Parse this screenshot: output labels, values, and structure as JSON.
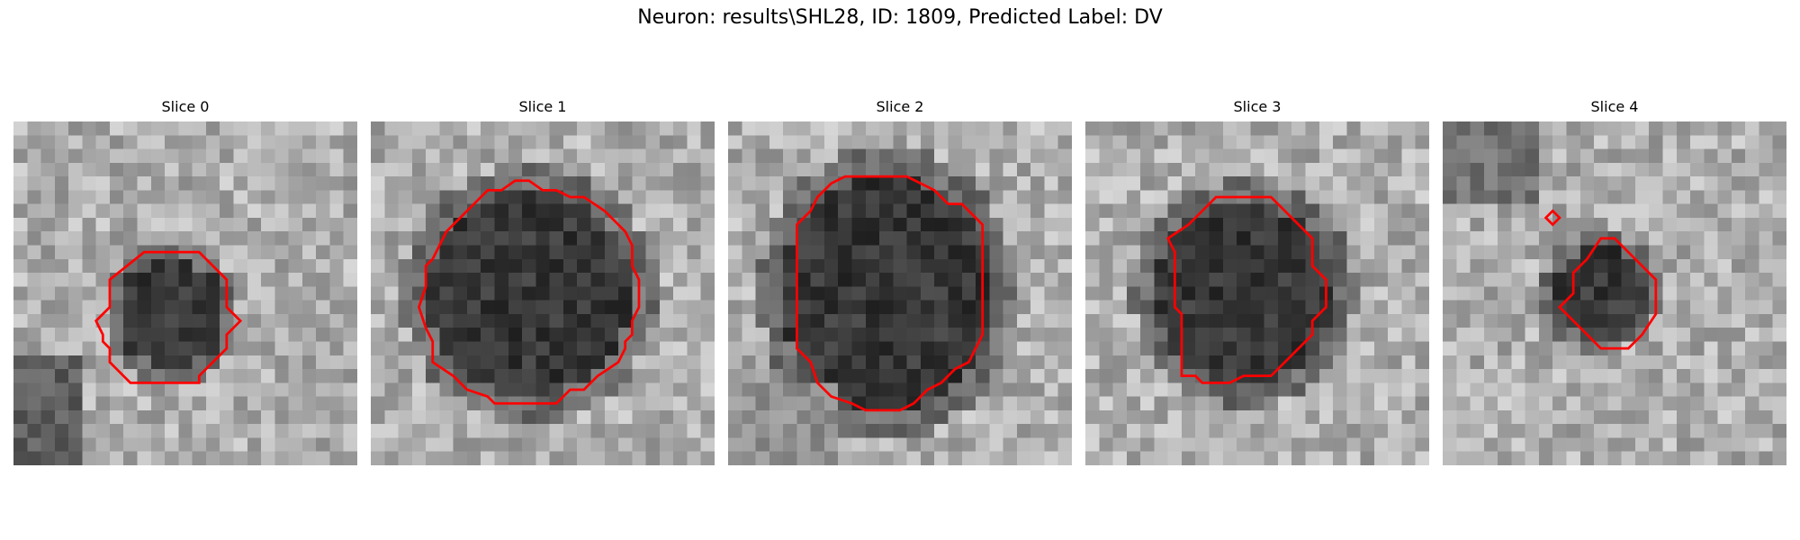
{
  "figure": {
    "title": "Neuron: results\\SHL28, ID: 1809, Predicted Label: DV",
    "contour_color": "#ff0000"
  },
  "panels": [
    {
      "title": "Slice 0",
      "contours": [
        [
          [
            9.5,
            9.5
          ],
          [
            13.5,
            9.5
          ],
          [
            15.5,
            11.5
          ],
          [
            15.5,
            13.5
          ],
          [
            16.5,
            14.5
          ],
          [
            15.5,
            15.5
          ],
          [
            15.5,
            16.5
          ],
          [
            14.5,
            17.5
          ],
          [
            13.5,
            18.5
          ],
          [
            13.5,
            19.0
          ],
          [
            8.5,
            19.0
          ],
          [
            7.5,
            18.0
          ],
          [
            7.0,
            17.5
          ],
          [
            7.0,
            16.5
          ],
          [
            6.5,
            16.0
          ],
          [
            6.5,
            15.5
          ],
          [
            6.0,
            14.5
          ],
          [
            7.0,
            13.5
          ],
          [
            7.0,
            11.5
          ]
        ]
      ],
      "lesion": {
        "cx": 11.5,
        "cy": 14.0,
        "rx": 4.0,
        "ry": 4.0
      }
    },
    {
      "title": "Slice 1",
      "contours": [
        [
          [
            9.5,
            5.0
          ],
          [
            10.5,
            4.3
          ],
          [
            11.5,
            4.3
          ],
          [
            12.5,
            5.0
          ],
          [
            13.5,
            5.0
          ],
          [
            14.5,
            5.5
          ],
          [
            15.5,
            5.5
          ],
          [
            17.0,
            6.5
          ],
          [
            17.5,
            7.0
          ],
          [
            18.5,
            8.0
          ],
          [
            19.0,
            9.0
          ],
          [
            19.0,
            10.5
          ],
          [
            19.5,
            11.5
          ],
          [
            19.5,
            13.5
          ],
          [
            19.0,
            14.5
          ],
          [
            19.0,
            15.5
          ],
          [
            18.5,
            16.0
          ],
          [
            18.5,
            16.5
          ],
          [
            18.0,
            17.5
          ],
          [
            16.5,
            18.5
          ],
          [
            15.5,
            19.5
          ],
          [
            14.5,
            19.5
          ],
          [
            13.5,
            20.5
          ],
          [
            9.0,
            20.5
          ],
          [
            8.5,
            20.0
          ],
          [
            7.0,
            19.5
          ],
          [
            6.0,
            18.5
          ],
          [
            4.5,
            17.5
          ],
          [
            4.5,
            16.0
          ],
          [
            4.0,
            15.0
          ],
          [
            3.5,
            13.5
          ],
          [
            4.0,
            12.0
          ],
          [
            4.0,
            10.5
          ],
          [
            4.5,
            10.0
          ],
          [
            5.5,
            8.0
          ],
          [
            7.0,
            6.5
          ],
          [
            8.5,
            5.0
          ]
        ]
      ],
      "lesion": {
        "cx": 11.5,
        "cy": 12.5,
        "rx": 7.5,
        "ry": 7.5
      }
    },
    {
      "title": "Slice 2",
      "contours": [
        [
          [
            8.5,
            4.0
          ],
          [
            13.0,
            4.0
          ],
          [
            14.0,
            4.5
          ],
          [
            15.0,
            5.0
          ],
          [
            16.0,
            6.0
          ],
          [
            17.0,
            6.0
          ],
          [
            17.5,
            6.5
          ],
          [
            18.5,
            7.5
          ],
          [
            18.5,
            15.5
          ],
          [
            17.5,
            17.5
          ],
          [
            16.5,
            18.0
          ],
          [
            15.5,
            19.0
          ],
          [
            14.5,
            19.5
          ],
          [
            13.5,
            20.5
          ],
          [
            12.5,
            21.0
          ],
          [
            10.0,
            21.0
          ],
          [
            9.0,
            20.5
          ],
          [
            7.5,
            20.0
          ],
          [
            6.5,
            19.0
          ],
          [
            6.0,
            17.5
          ],
          [
            5.0,
            16.5
          ],
          [
            5.0,
            7.5
          ],
          [
            6.0,
            6.5
          ],
          [
            6.5,
            5.5
          ],
          [
            7.5,
            4.5
          ]
        ]
      ],
      "lesion": {
        "cx": 11.5,
        "cy": 12.5,
        "rx": 7.5,
        "ry": 8.5
      }
    },
    {
      "title": "Slice 3",
      "contours": [
        [
          [
            9.5,
            5.5
          ],
          [
            13.5,
            5.5
          ],
          [
            16.5,
            8.5
          ],
          [
            16.5,
            10.5
          ],
          [
            17.5,
            11.5
          ],
          [
            17.5,
            13.5
          ],
          [
            16.5,
            14.5
          ],
          [
            16.5,
            15.5
          ],
          [
            15.5,
            16.5
          ],
          [
            14.0,
            18.0
          ],
          [
            13.5,
            18.5
          ],
          [
            11.5,
            18.5
          ],
          [
            10.5,
            19.0
          ],
          [
            8.5,
            19.0
          ],
          [
            8.0,
            18.5
          ],
          [
            7.0,
            18.5
          ],
          [
            7.0,
            14.0
          ],
          [
            6.5,
            13.5
          ],
          [
            6.5,
            9.5
          ],
          [
            6.0,
            8.5
          ],
          [
            7.5,
            7.5
          ],
          [
            8.5,
            6.5
          ]
        ]
      ],
      "lesion": {
        "cx": 11.5,
        "cy": 12.5,
        "rx": 6.5,
        "ry": 6.5
      }
    },
    {
      "title": "Slice 4",
      "contours": [
        [
          [
            11.5,
            8.5
          ],
          [
            12.5,
            8.5
          ],
          [
            13.5,
            9.5
          ],
          [
            15.5,
            11.5
          ],
          [
            15.5,
            14.0
          ],
          [
            14.5,
            15.5
          ],
          [
            13.5,
            16.5
          ],
          [
            11.5,
            16.5
          ],
          [
            10.5,
            15.5
          ],
          [
            9.5,
            14.5
          ],
          [
            8.5,
            13.5
          ],
          [
            9.5,
            12.5
          ],
          [
            9.5,
            11.0
          ],
          [
            10.5,
            10.0
          ]
        ],
        [
          [
            8.0,
            6.5
          ],
          [
            8.5,
            7.0
          ],
          [
            8.0,
            7.5
          ],
          [
            7.5,
            7.0
          ]
        ]
      ],
      "lesion": {
        "cx": 11.5,
        "cy": 12.5,
        "rx": 3.5,
        "ry": 3.5
      }
    }
  ]
}
